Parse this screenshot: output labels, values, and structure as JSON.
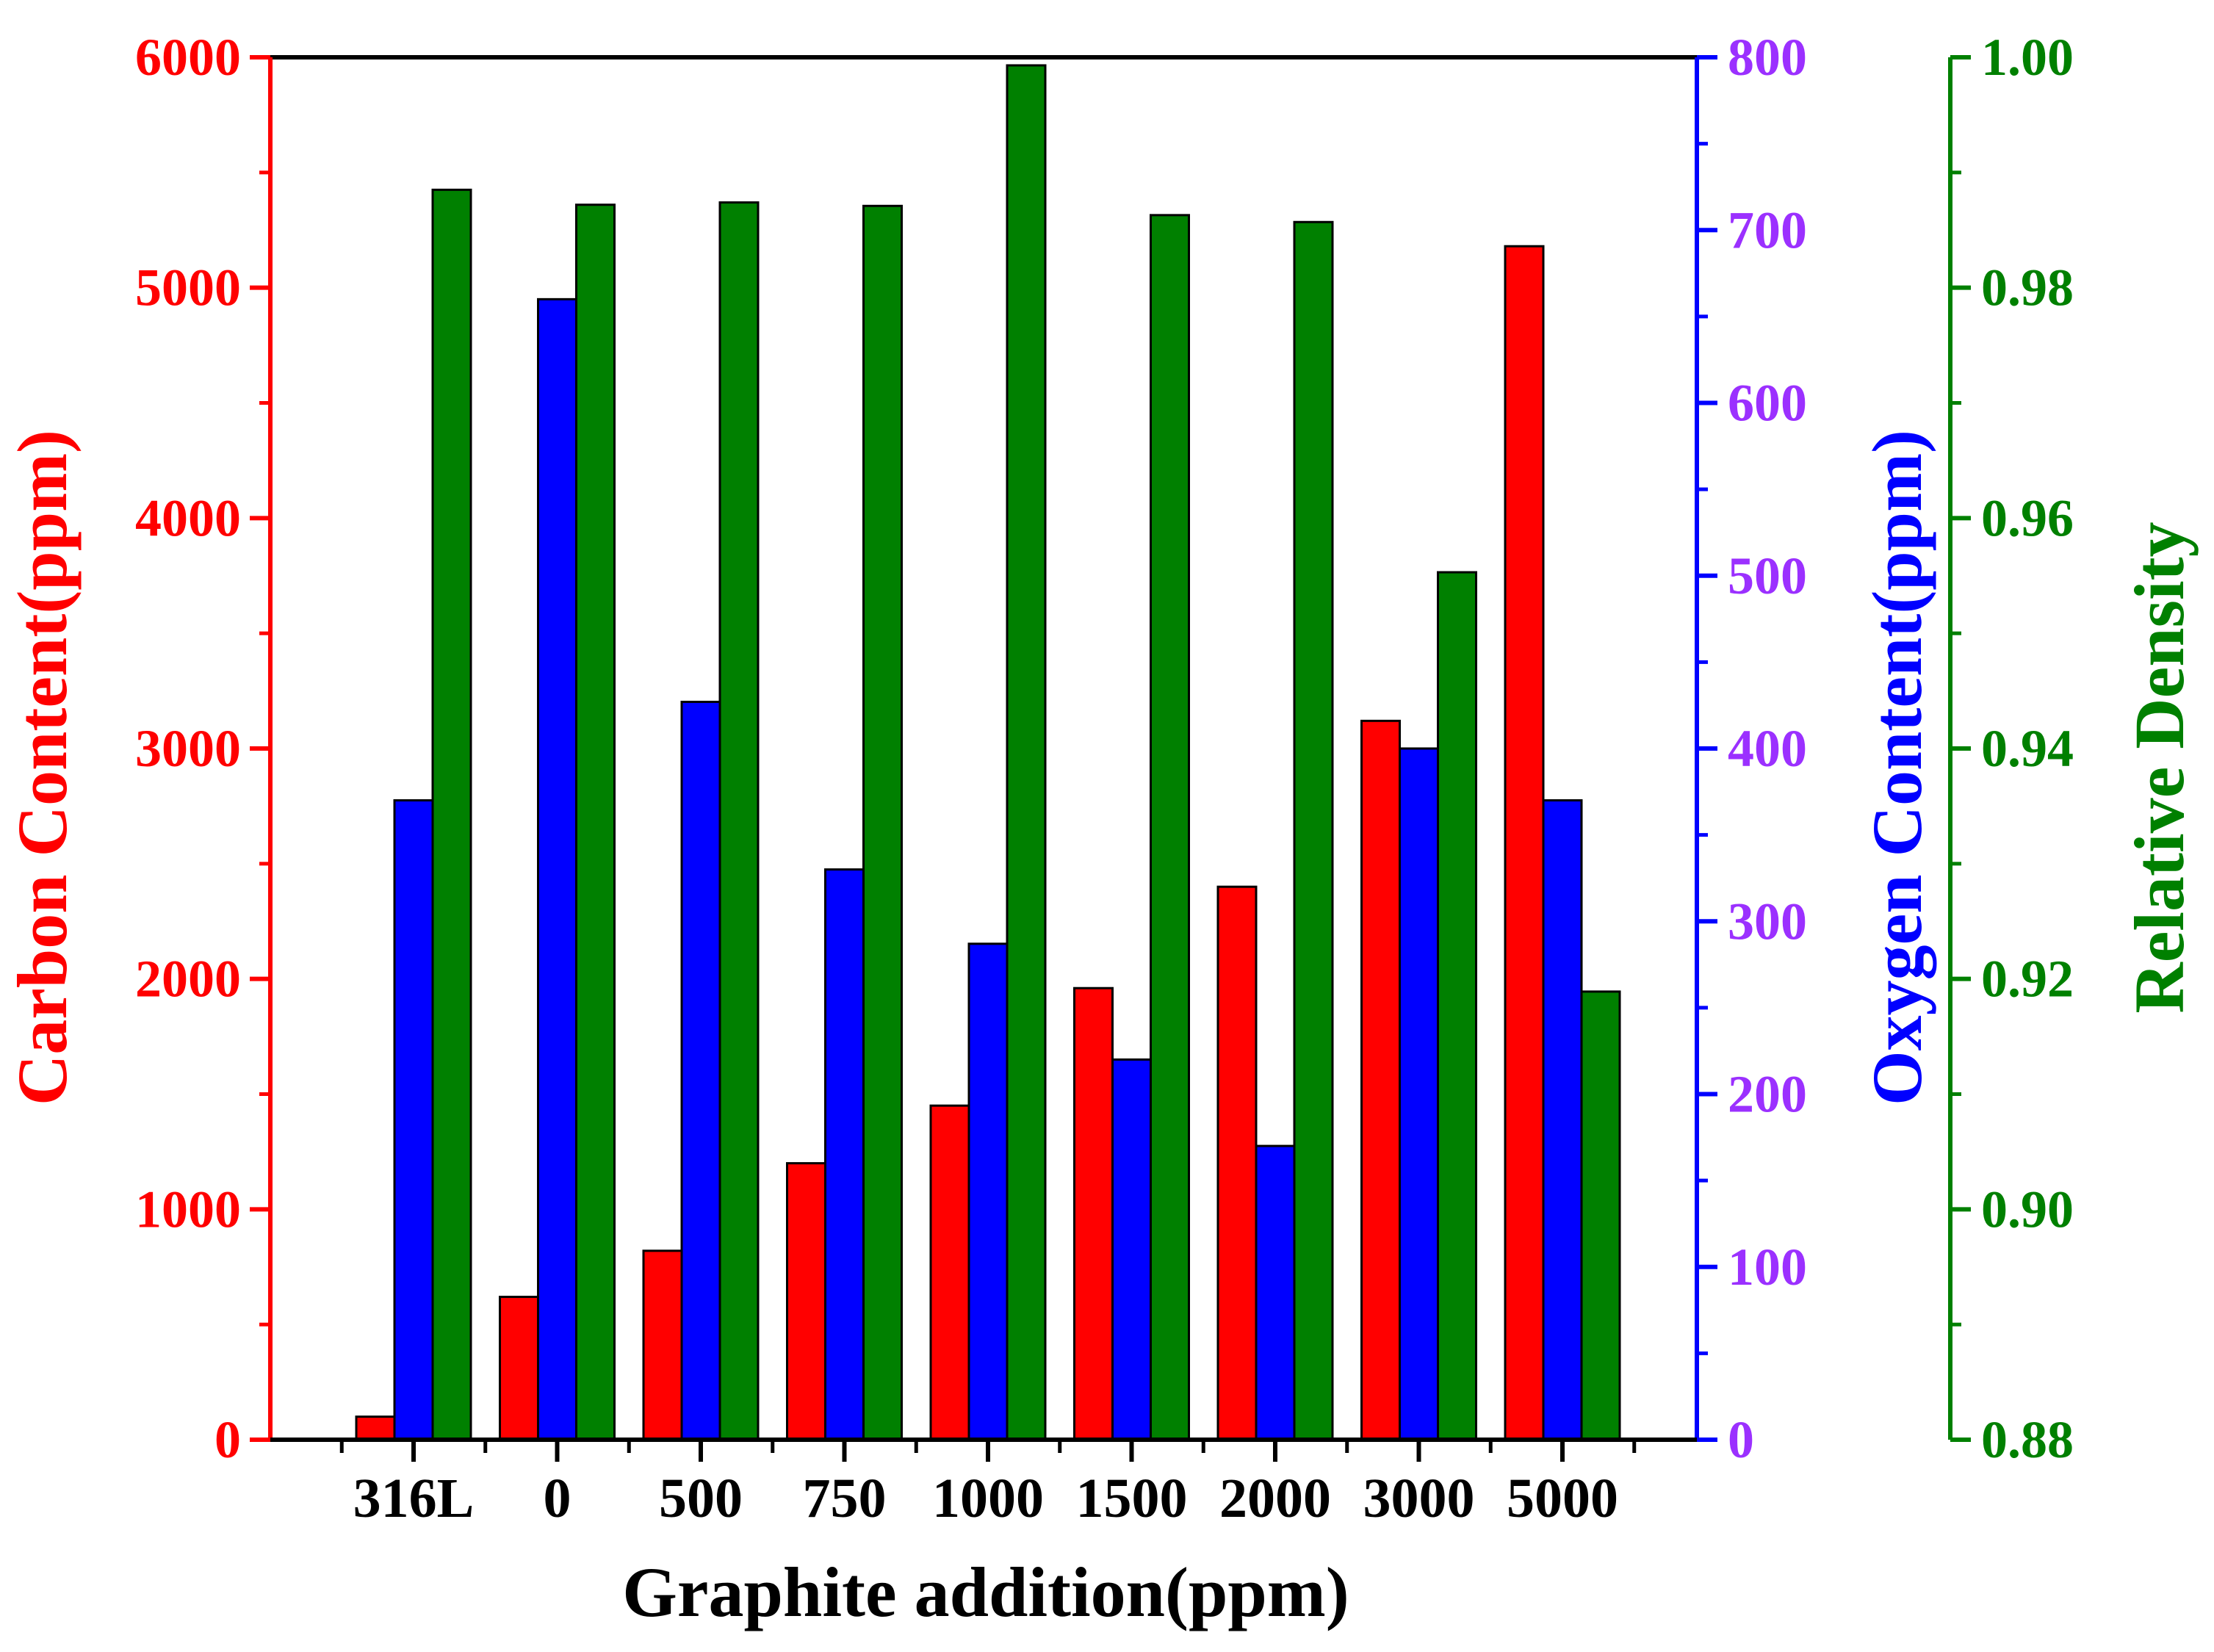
{
  "chart_data": {
    "type": "bar",
    "title": "",
    "xlabel": "Graphite addition(ppm)",
    "categories": [
      "316L",
      "0",
      "500",
      "750",
      "1000",
      "1500",
      "2000",
      "3000",
      "5000"
    ],
    "series": [
      {
        "name": "Carbon Content(ppm)",
        "axis": "left",
        "color": "#ff0000",
        "values": [
          100,
          620,
          820,
          1200,
          1450,
          1960,
          2400,
          3120,
          5180
        ]
      },
      {
        "name": "Oxygen Content(ppm)",
        "axis": "right1",
        "color": "#0000ff",
        "values": [
          370,
          660,
          427,
          330,
          287,
          220,
          170,
          400,
          370
        ]
      },
      {
        "name": "Relative Density",
        "axis": "right2",
        "color": "#008000",
        "values": [
          0.9885,
          0.9872,
          0.9874,
          0.9871,
          0.9993,
          0.9863,
          0.9857,
          0.9553,
          0.9189
        ]
      }
    ],
    "axes": {
      "left": {
        "label": "Carbon Content(ppm)",
        "color": "#ff0000",
        "range": [
          0,
          6000
        ],
        "ticks": [
          "0",
          "1000",
          "2000",
          "3000",
          "4000",
          "5000",
          "6000"
        ],
        "tick_values": [
          0,
          1000,
          2000,
          3000,
          4000,
          5000,
          6000
        ]
      },
      "right1": {
        "label": "Oxygen Content(ppm)",
        "color": "#0000ff",
        "tick_color": "#9b30ff",
        "range": [
          0,
          800
        ],
        "ticks": [
          "0",
          "100",
          "200",
          "300",
          "400",
          "500",
          "600",
          "700",
          "800"
        ],
        "tick_values": [
          0,
          100,
          200,
          300,
          400,
          500,
          600,
          700,
          800
        ]
      },
      "right2": {
        "label": "Relative Density",
        "color": "#008000",
        "range": [
          0.88,
          1.0
        ],
        "ticks": [
          "0.88",
          "0.90",
          "0.92",
          "0.94",
          "0.96",
          "0.98",
          "1.00"
        ],
        "tick_values": [
          0.88,
          0.9,
          0.92,
          0.94,
          0.96,
          0.98,
          1.0
        ]
      }
    },
    "grid": false,
    "legend": "none"
  }
}
